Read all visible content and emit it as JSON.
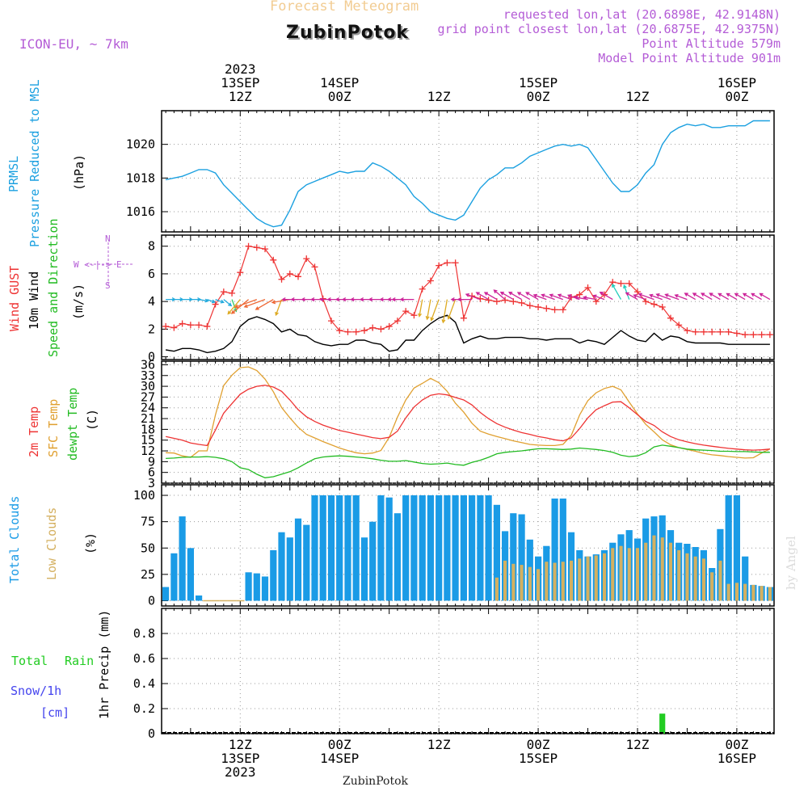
{
  "header": {
    "subtitle": "Forecast Meteogram",
    "station": "ZubinPotok",
    "model": "ICON-EU, ~ 7km",
    "requested": "requested lon,lat (20.6898E, 42.9148N)",
    "closest": "grid point closest lon,lat (20.6875E, 42.9375N)",
    "point_alt": "Point Altitude 579m",
    "model_alt": "Model Point Altitude 901m"
  },
  "time_axis": {
    "top": [
      {
        "l1": "2023",
        "l2": "13SEP",
        "l3": "12Z",
        "t": 12
      },
      {
        "l1": "",
        "l2": "14SEP",
        "l3": "00Z",
        "t": 24
      },
      {
        "l1": "",
        "l2": "",
        "l3": "12Z",
        "t": 36
      },
      {
        "l1": "",
        "l2": "15SEP",
        "l3": "00Z",
        "t": 48
      },
      {
        "l1": "",
        "l2": "",
        "l3": "12Z",
        "t": 60
      },
      {
        "l1": "",
        "l2": "16SEP",
        "l3": "00Z",
        "t": 72
      }
    ],
    "bottom": [
      {
        "l1": "12Z",
        "l2": "13SEP",
        "l3": "2023",
        "t": 12
      },
      {
        "l1": "00Z",
        "l2": "14SEP",
        "l3": "",
        "t": 24
      },
      {
        "l1": "12Z",
        "l2": "",
        "l3": "",
        "t": 36
      },
      {
        "l1": "00Z",
        "l2": "15SEP",
        "l3": "",
        "t": 48
      },
      {
        "l1": "12Z",
        "l2": "",
        "l3": "",
        "t": 60
      },
      {
        "l1": "00Z",
        "l2": "16SEP",
        "l3": "",
        "t": 72
      }
    ]
  },
  "labels": {
    "p1": [
      "PRMSL",
      "Pressure Reduced to MSL",
      "(hPa)"
    ],
    "p2": [
      "Wind GUST",
      "10m Wind",
      "Speed and Direction",
      "(m/s)"
    ],
    "compass": {
      "n": "N",
      "s": "S",
      "we": "W <-|-> E"
    },
    "p3": [
      "2m Temp",
      "SFC Temp",
      "dewpt Temp",
      "(C)"
    ],
    "p4": [
      "Total Clouds",
      "Low Clouds",
      "(%)"
    ],
    "p5": [
      "Total",
      "Rain",
      "Snow/1h",
      "[cm]",
      "1hr Precip (mm)"
    ],
    "footer": "ZubinPotok",
    "signature": "by Angel"
  },
  "colors": {
    "pressure": "#1ba0e0",
    "gust": "#ee3333",
    "wind": "#000000",
    "t2m": "#ee3333",
    "tsfc": "#e0a030",
    "dew": "#22bb22",
    "total_cloud": "#1a9be6",
    "low_cloud": "#d4b060",
    "rain": "#22cc22",
    "snow": "#4444ee",
    "purple": "#b45cd6",
    "grid": "#999999"
  },
  "chart_data": [
    {
      "type": "line",
      "name": "PRMSL",
      "x_start_hour": 3,
      "x_end_hour": 76,
      "ylim": [
        1014.8,
        1022.0
      ],
      "yticks": [
        1016,
        1018,
        1020
      ],
      "x": [
        3,
        4,
        5,
        6,
        7,
        8,
        9,
        10,
        11,
        12,
        13,
        14,
        15,
        16,
        17,
        18,
        19,
        20,
        21,
        22,
        23,
        24,
        25,
        26,
        27,
        28,
        29,
        30,
        31,
        32,
        33,
        34,
        35,
        36,
        37,
        38,
        39,
        40,
        41,
        42,
        43,
        44,
        45,
        46,
        47,
        48,
        49,
        50,
        51,
        52,
        53,
        54,
        55,
        56,
        57,
        58,
        59,
        60,
        61,
        62,
        63,
        64,
        65,
        66,
        67,
        68,
        69,
        70,
        71,
        72,
        73,
        74,
        75,
        76
      ],
      "values": [
        1017.9,
        1018.0,
        1018.1,
        1018.3,
        1018.5,
        1018.5,
        1018.3,
        1017.6,
        1017.1,
        1016.6,
        1016.1,
        1015.6,
        1015.3,
        1015.1,
        1015.2,
        1016.1,
        1017.2,
        1017.6,
        1017.8,
        1018.0,
        1018.2,
        1018.4,
        1018.3,
        1018.4,
        1018.4,
        1018.9,
        1018.7,
        1018.4,
        1018.0,
        1017.6,
        1016.9,
        1016.5,
        1016.0,
        1015.8,
        1015.6,
        1015.5,
        1015.8,
        1016.6,
        1017.4,
        1017.9,
        1018.2,
        1018.6,
        1018.6,
        1018.9,
        1019.3,
        1019.5,
        1019.7,
        1019.9,
        1020.0,
        1019.9,
        1020.0,
        1019.8,
        1019.1,
        1018.4,
        1017.7,
        1017.2,
        1017.2,
        1017.6,
        1018.3,
        1018.8,
        1020.0,
        1020.7,
        1021.0,
        1021.2,
        1021.1,
        1021.2,
        1021.0,
        1021.0,
        1021.1,
        1021.1,
        1021.1,
        1021.4,
        1021.4,
        1021.4
      ]
    },
    {
      "type": "line",
      "name": "Wind GUST / 10m Wind",
      "x_start_hour": 3,
      "x_end_hour": 76,
      "ylim": [
        -0.2,
        8.8
      ],
      "yticks": [
        0,
        2,
        4,
        6,
        8
      ],
      "x": [
        3,
        4,
        5,
        6,
        7,
        8,
        9,
        10,
        11,
        12,
        13,
        14,
        15,
        16,
        17,
        18,
        19,
        20,
        21,
        22,
        23,
        24,
        25,
        26,
        27,
        28,
        29,
        30,
        31,
        32,
        33,
        34,
        35,
        36,
        37,
        38,
        39,
        40,
        41,
        42,
        43,
        44,
        45,
        46,
        47,
        48,
        49,
        50,
        51,
        52,
        53,
        54,
        55,
        56,
        57,
        58,
        59,
        60,
        61,
        62,
        63,
        64,
        65,
        66,
        67,
        68,
        69,
        70,
        71,
        72,
        73,
        74,
        75,
        76
      ],
      "gust": [
        2.2,
        2.1,
        2.4,
        2.3,
        2.3,
        2.2,
        3.8,
        4.7,
        4.6,
        6.1,
        8.0,
        7.9,
        7.8,
        7.0,
        5.6,
        6.0,
        5.8,
        7.1,
        6.5,
        4.2,
        2.6,
        1.9,
        1.8,
        1.8,
        1.9,
        2.1,
        2.0,
        2.2,
        2.6,
        3.3,
        3.0,
        4.9,
        5.5,
        6.6,
        6.8,
        6.8,
        2.8,
        4.4,
        4.2,
        4.1,
        4.0,
        4.1,
        4.0,
        3.9,
        3.7,
        3.6,
        3.5,
        3.4,
        3.4,
        4.3,
        4.5,
        5.0,
        4.0,
        4.5,
        5.4,
        5.3,
        5.3,
        4.7,
        4.0,
        3.8,
        3.6,
        2.8,
        2.3,
        1.9,
        1.8,
        1.8,
        1.8,
        1.8,
        1.8,
        1.7,
        1.6,
        1.6,
        1.6,
        1.6
      ],
      "wind": [
        0.5,
        0.4,
        0.6,
        0.6,
        0.5,
        0.3,
        0.4,
        0.6,
        1.1,
        2.2,
        2.7,
        2.9,
        2.7,
        2.4,
        1.8,
        2.0,
        1.6,
        1.5,
        1.1,
        0.9,
        0.8,
        0.9,
        0.9,
        1.2,
        1.2,
        1.0,
        0.9,
        0.4,
        0.5,
        1.2,
        1.2,
        1.9,
        2.4,
        2.8,
        3.0,
        2.5,
        1.0,
        1.3,
        1.5,
        1.3,
        1.3,
        1.4,
        1.4,
        1.4,
        1.3,
        1.3,
        1.2,
        1.3,
        1.3,
        1.3,
        1.0,
        1.2,
        1.1,
        0.9,
        1.4,
        1.9,
        1.5,
        1.2,
        1.1,
        1.7,
        1.2,
        1.5,
        1.4,
        1.1,
        1.0,
        1.0,
        1.0,
        1.0,
        0.9,
        0.9,
        0.9,
        0.9,
        0.9,
        0.9
      ],
      "dir_deg": [
        90,
        90,
        90,
        90,
        100,
        110,
        110,
        130,
        160,
        220,
        230,
        250,
        250,
        240,
        200,
        260,
        270,
        270,
        270,
        270,
        270,
        270,
        270,
        270,
        270,
        270,
        270,
        270,
        270,
        270,
        270,
        190,
        190,
        200,
        190,
        200,
        270,
        270,
        290,
        300,
        300,
        310,
        300,
        300,
        300,
        300,
        290,
        290,
        290,
        290,
        290,
        280,
        280,
        290,
        300,
        330,
        340,
        300,
        290,
        290,
        290,
        290,
        290,
        290,
        300,
        300,
        300,
        300,
        300,
        300,
        300,
        300,
        300,
        300
      ]
    },
    {
      "type": "line",
      "name": "Temperature",
      "x_start_hour": 3,
      "x_end_hour": 76,
      "ylim": [
        3,
        37
      ],
      "yticks": [
        3,
        6,
        9,
        12,
        15,
        18,
        21,
        24,
        27,
        30,
        33,
        36
      ],
      "x": [
        3,
        4,
        5,
        6,
        7,
        8,
        9,
        10,
        11,
        12,
        13,
        14,
        15,
        16,
        17,
        18,
        19,
        20,
        21,
        22,
        23,
        24,
        25,
        26,
        27,
        28,
        29,
        30,
        31,
        32,
        33,
        34,
        35,
        36,
        37,
        38,
        39,
        40,
        41,
        42,
        43,
        44,
        45,
        46,
        47,
        48,
        49,
        50,
        51,
        52,
        53,
        54,
        55,
        56,
        57,
        58,
        59,
        60,
        61,
        62,
        63,
        64,
        65,
        66,
        67,
        68,
        69,
        70,
        71,
        72,
        73,
        74,
        75,
        76
      ],
      "t2m": [
        16.0,
        15.5,
        15.0,
        14.2,
        13.8,
        13.5,
        17.8,
        22.5,
        25.2,
        27.8,
        29.2,
        30.0,
        30.3,
        29.8,
        28.6,
        26.2,
        23.5,
        21.5,
        20.2,
        19.2,
        18.4,
        17.7,
        17.2,
        16.7,
        16.2,
        15.7,
        15.4,
        15.8,
        17.5,
        21.2,
        24.2,
        26.2,
        27.5,
        27.9,
        27.6,
        26.9,
        26.2,
        24.8,
        22.7,
        21.0,
        19.6,
        18.6,
        17.8,
        17.1,
        16.6,
        16.0,
        15.6,
        15.1,
        14.8,
        15.6,
        18.2,
        21.2,
        23.5,
        24.6,
        25.6,
        25.7,
        24.0,
        22.1,
        20.2,
        19.1,
        17.3,
        16.0,
        15.1,
        14.5,
        14.0,
        13.6,
        13.3,
        13.0,
        12.7,
        12.5,
        12.3,
        12.2,
        12.3,
        12.5
      ],
      "tsfc": [
        11.5,
        11.4,
        10.6,
        10.2,
        12.0,
        12.0,
        22.0,
        30.2,
        33.1,
        35.2,
        35.4,
        34.4,
        32.0,
        28.5,
        24.1,
        21.2,
        18.6,
        16.6,
        15.6,
        14.6,
        13.7,
        12.8,
        12.1,
        11.5,
        11.2,
        11.4,
        12.1,
        15.8,
        21.4,
        26.2,
        29.5,
        30.8,
        32.2,
        31.0,
        28.6,
        25.3,
        22.8,
        19.7,
        17.5,
        16.7,
        16.0,
        15.4,
        14.8,
        14.3,
        13.8,
        13.6,
        13.5,
        13.5,
        13.8,
        16.3,
        22.0,
        26.0,
        28.2,
        29.4,
        30.0,
        29.0,
        25.6,
        22.3,
        19.4,
        17.3,
        15.1,
        13.7,
        12.9,
        12.4,
        11.9,
        11.3,
        10.9,
        10.7,
        10.4,
        10.2,
        10.0,
        10.1,
        11.4,
        12.6
      ],
      "dew": [
        9.9,
        10.0,
        10.2,
        10.3,
        10.3,
        10.4,
        10.2,
        9.8,
        9.0,
        7.3,
        6.8,
        5.5,
        4.5,
        4.8,
        5.5,
        6.2,
        7.3,
        8.6,
        9.8,
        10.3,
        10.5,
        10.6,
        10.5,
        10.3,
        10.1,
        9.8,
        9.4,
        9.1,
        9.1,
        9.3,
        8.9,
        8.5,
        8.3,
        8.4,
        8.6,
        8.2,
        8.0,
        8.8,
        9.4,
        10.2,
        11.2,
        11.6,
        11.8,
        12.0,
        12.3,
        12.6,
        12.6,
        12.5,
        12.4,
        12.5,
        12.8,
        12.6,
        12.4,
        12.1,
        11.6,
        10.8,
        10.4,
        10.6,
        11.5,
        13.1,
        13.6,
        13.3,
        12.9,
        12.5,
        12.3,
        12.2,
        12.1,
        11.9,
        11.9,
        11.8,
        11.8,
        11.7,
        11.6,
        11.6
      ]
    },
    {
      "type": "bar",
      "name": "Clouds",
      "x_start_hour": 3,
      "x_end_hour": 76,
      "ylim": [
        -5,
        110
      ],
      "yticks": [
        0,
        25,
        50,
        75,
        100
      ],
      "x": [
        3,
        4,
        5,
        6,
        7,
        8,
        9,
        10,
        11,
        12,
        13,
        14,
        15,
        16,
        17,
        18,
        19,
        20,
        21,
        22,
        23,
        24,
        25,
        26,
        27,
        28,
        29,
        30,
        31,
        32,
        33,
        34,
        35,
        36,
        37,
        38,
        39,
        40,
        41,
        42,
        43,
        44,
        45,
        46,
        47,
        48,
        49,
        50,
        51,
        52,
        53,
        54,
        55,
        56,
        57,
        58,
        59,
        60,
        61,
        62,
        63,
        64,
        65,
        66,
        67,
        68,
        69,
        70,
        71,
        72,
        73,
        74,
        75,
        76
      ],
      "total": [
        13,
        45,
        80,
        50,
        5,
        0,
        0,
        0,
        0,
        0,
        27,
        26,
        23,
        48,
        65,
        60,
        78,
        72,
        100,
        100,
        100,
        100,
        100,
        100,
        60,
        75,
        100,
        98,
        83,
        100,
        100,
        100,
        100,
        100,
        100,
        100,
        100,
        100,
        100,
        100,
        91,
        66,
        83,
        82,
        58,
        42,
        52,
        97,
        97,
        65,
        48,
        42,
        44,
        48,
        55,
        63,
        67,
        59,
        78,
        80,
        81,
        67,
        55,
        54,
        51,
        48,
        31,
        68,
        100,
        100,
        42,
        15,
        14,
        13
      ],
      "low": [
        0,
        0,
        0,
        0,
        0,
        0,
        0,
        0,
        0,
        0,
        0,
        0,
        0,
        0,
        0,
        0,
        0,
        0,
        0,
        0,
        0,
        0,
        0,
        0,
        0,
        0,
        0,
        0,
        0,
        0,
        0,
        0,
        0,
        0,
        0,
        0,
        0,
        0,
        0,
        0,
        22,
        38,
        35,
        34,
        32,
        30,
        37,
        36,
        37,
        38,
        40,
        42,
        43,
        45,
        50,
        52,
        50,
        50,
        55,
        62,
        60,
        55,
        48,
        45,
        42,
        40,
        27,
        38,
        16,
        17,
        16,
        15,
        14,
        13
      ]
    },
    {
      "type": "bar",
      "name": "1hr Precip",
      "x_start_hour": 3,
      "x_end_hour": 76,
      "ylim": [
        0,
        1.0
      ],
      "yticks": [
        0,
        0.2,
        0.4,
        0.6,
        0.8
      ],
      "ytick_labels": [
        "0",
        "0.2",
        "0.4",
        "0.6",
        "0.8"
      ],
      "x": [
        63
      ],
      "rain": [
        0.16
      ],
      "snow": [
        0
      ]
    }
  ]
}
